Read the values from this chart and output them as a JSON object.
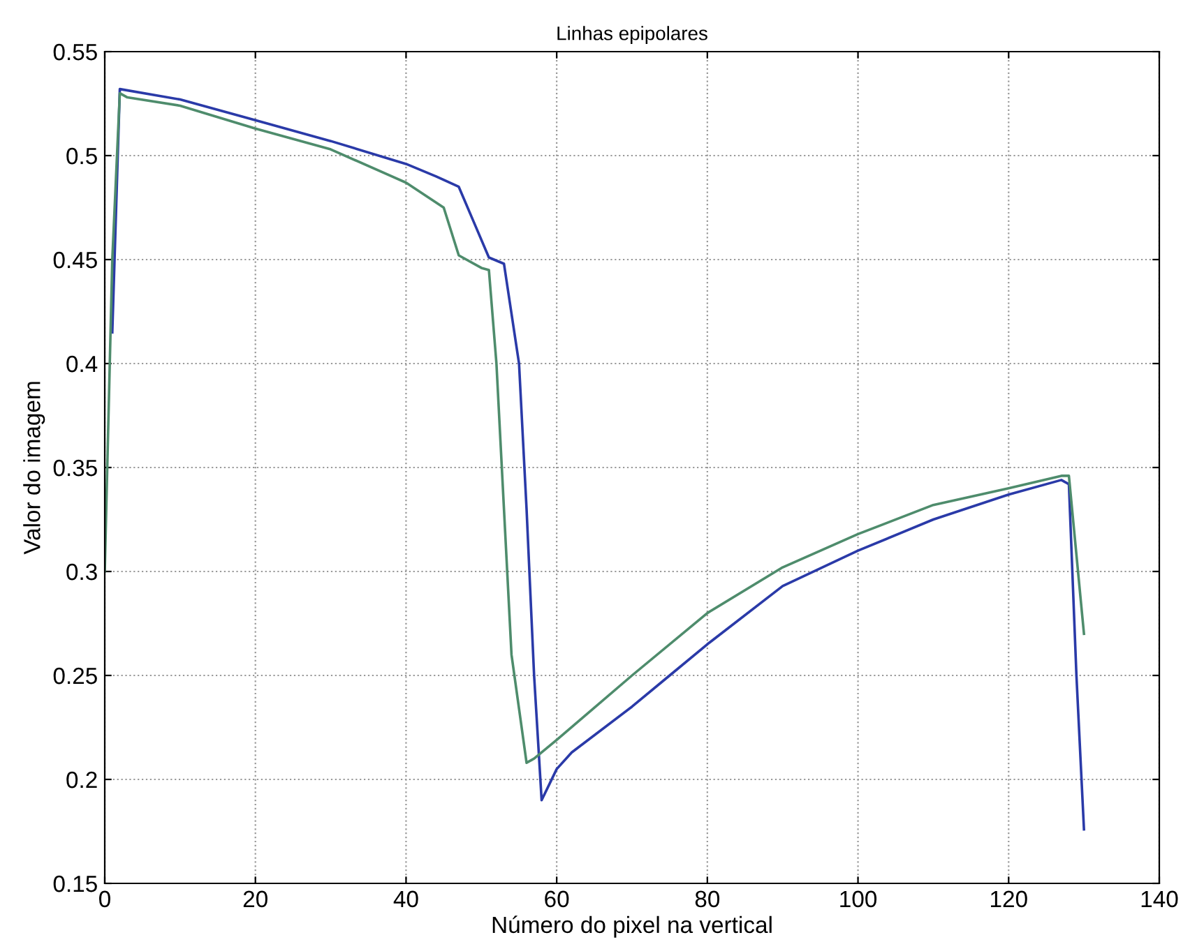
{
  "chart_data": {
    "type": "line",
    "title": "Linhas epipolares",
    "xlabel": "Número do pixel na vertical",
    "ylabel": "Valor do imagem",
    "xlim": [
      0,
      140
    ],
    "ylim": [
      0.15,
      0.55
    ],
    "xticks": [
      0,
      20,
      40,
      60,
      80,
      100,
      120,
      140
    ],
    "yticks": [
      0.15,
      0.2,
      0.25,
      0.3,
      0.35,
      0.4,
      0.45,
      0.5,
      0.55
    ],
    "grid": true,
    "line_style": "solid",
    "series": [
      {
        "color": "#2a3aa8",
        "x": [
          1,
          2,
          10,
          20,
          30,
          40,
          44,
          47,
          49,
          51,
          53,
          55,
          56,
          57,
          58,
          60,
          62,
          70,
          75,
          80,
          90,
          100,
          110,
          120,
          127,
          128,
          129,
          130
        ],
        "values": [
          0.415,
          0.532,
          0.527,
          0.517,
          0.507,
          0.496,
          0.49,
          0.485,
          0.468,
          0.451,
          0.448,
          0.4,
          0.33,
          0.25,
          0.19,
          0.205,
          0.213,
          0.235,
          0.25,
          0.265,
          0.293,
          0.31,
          0.325,
          0.337,
          0.344,
          0.342,
          0.25,
          0.176
        ]
      },
      {
        "color": "#4e8c6c",
        "x": [
          0,
          1,
          2,
          3,
          10,
          20,
          30,
          40,
          45,
          47,
          50,
          51,
          52,
          53,
          54,
          56,
          57,
          60,
          70,
          80,
          90,
          100,
          110,
          120,
          127,
          128,
          130
        ],
        "values": [
          0.3,
          0.45,
          0.53,
          0.528,
          0.524,
          0.513,
          0.503,
          0.487,
          0.475,
          0.452,
          0.446,
          0.445,
          0.4,
          0.33,
          0.26,
          0.208,
          0.21,
          0.219,
          0.25,
          0.28,
          0.302,
          0.318,
          0.332,
          0.34,
          0.346,
          0.346,
          0.27
        ]
      }
    ]
  }
}
